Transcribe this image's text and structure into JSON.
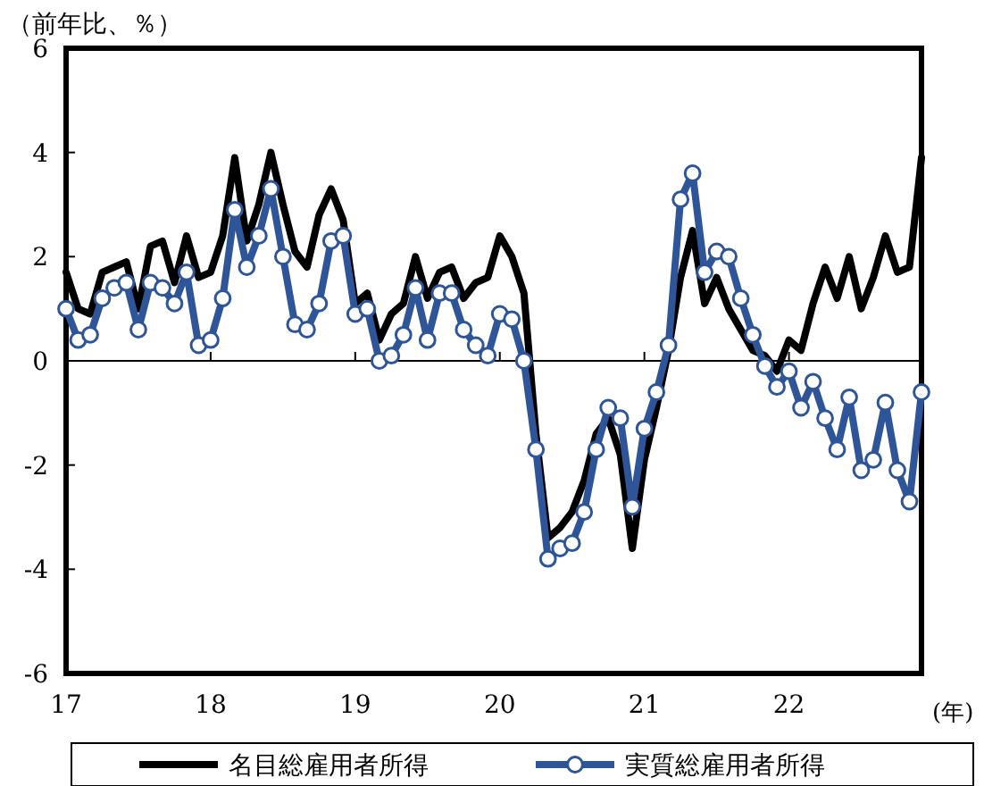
{
  "chart_data": {
    "type": "line",
    "ylabel": "（前年比、％）",
    "xlabel": "(年)",
    "x": [
      "2017-01",
      "2017-02",
      "2017-03",
      "2017-04",
      "2017-05",
      "2017-06",
      "2017-07",
      "2017-08",
      "2017-09",
      "2017-10",
      "2017-11",
      "2017-12",
      "2018-01",
      "2018-02",
      "2018-03",
      "2018-04",
      "2018-05",
      "2018-06",
      "2018-07",
      "2018-08",
      "2018-09",
      "2018-10",
      "2018-11",
      "2018-12",
      "2019-01",
      "2019-02",
      "2019-03",
      "2019-04",
      "2019-05",
      "2019-06",
      "2019-07",
      "2019-08",
      "2019-09",
      "2019-10",
      "2019-11",
      "2019-12",
      "2020-01",
      "2020-02",
      "2020-03",
      "2020-04",
      "2020-05",
      "2020-06",
      "2020-07",
      "2020-08",
      "2020-09",
      "2020-10",
      "2020-11",
      "2020-12",
      "2021-01",
      "2021-02",
      "2021-03",
      "2021-04",
      "2021-05",
      "2021-06",
      "2021-07",
      "2021-08",
      "2021-09",
      "2021-10",
      "2021-11",
      "2021-12",
      "2022-01",
      "2022-02",
      "2022-03",
      "2022-04",
      "2022-05",
      "2022-06",
      "2022-07",
      "2022-08",
      "2022-09",
      "2022-10",
      "2022-11",
      "2022-12"
    ],
    "xlim": [
      "2017-01",
      "2022-12"
    ],
    "xticks": [
      {
        "value": "2017-01",
        "label": "17"
      },
      {
        "value": "2018-01",
        "label": "18"
      },
      {
        "value": "2019-01",
        "label": "19"
      },
      {
        "value": "2020-01",
        "label": "20"
      },
      {
        "value": "2021-01",
        "label": "21"
      },
      {
        "value": "2022-01",
        "label": "22"
      }
    ],
    "ylim": [
      -6,
      6
    ],
    "yticks": [
      -6,
      -4,
      -2,
      0,
      2,
      4,
      6
    ],
    "grid": false,
    "legend": "bottom",
    "ref_lines": [
      {
        "axis": "y",
        "value": 0,
        "color": "#000000"
      }
    ],
    "series": [
      {
        "name": "名目総雇用者所得",
        "color": "#000000",
        "marker": "none",
        "values": [
          1.7,
          1.0,
          0.9,
          1.7,
          1.8,
          1.9,
          1.0,
          2.2,
          2.3,
          1.5,
          2.4,
          1.6,
          1.7,
          2.4,
          3.9,
          2.3,
          3.0,
          4.0,
          3.0,
          2.1,
          1.8,
          2.8,
          3.3,
          2.7,
          1.1,
          1.3,
          0.4,
          0.9,
          1.1,
          2.0,
          1.2,
          1.7,
          1.8,
          1.2,
          1.5,
          1.6,
          2.4,
          2.0,
          1.3,
          -1.4,
          -3.4,
          -3.2,
          -2.9,
          -2.3,
          -1.4,
          -1.1,
          -1.8,
          -3.6,
          -1.9,
          -0.9,
          0.2,
          1.6,
          2.5,
          1.1,
          1.6,
          1.0,
          0.6,
          0.2,
          0.1,
          -0.2,
          0.4,
          0.2,
          1.1,
          1.8,
          1.2,
          2.0,
          1.0,
          1.6,
          2.4,
          1.7,
          1.8,
          3.9
        ]
      },
      {
        "name": "実質総雇用者所得",
        "color": "#2e5597",
        "marker": "circle",
        "values": [
          1.0,
          0.4,
          0.5,
          1.2,
          1.4,
          1.5,
          0.6,
          1.5,
          1.4,
          1.1,
          1.7,
          0.3,
          0.4,
          1.2,
          2.9,
          1.8,
          2.4,
          3.3,
          2.0,
          0.7,
          0.6,
          1.1,
          2.3,
          2.4,
          0.9,
          1.0,
          0.0,
          0.1,
          0.5,
          1.4,
          0.4,
          1.3,
          1.3,
          0.6,
          0.3,
          0.1,
          0.9,
          0.8,
          0.0,
          -1.7,
          -3.8,
          -3.6,
          -3.5,
          -2.9,
          -1.7,
          -0.9,
          -1.1,
          -2.8,
          -1.3,
          -0.6,
          0.3,
          3.1,
          3.6,
          1.7,
          2.1,
          2.0,
          1.2,
          0.5,
          -0.1,
          -0.5,
          -0.2,
          -0.9,
          -0.4,
          -1.1,
          -1.7,
          -0.7,
          -2.1,
          -1.9,
          -0.8,
          -2.1,
          -2.7,
          -0.6
        ]
      }
    ]
  }
}
